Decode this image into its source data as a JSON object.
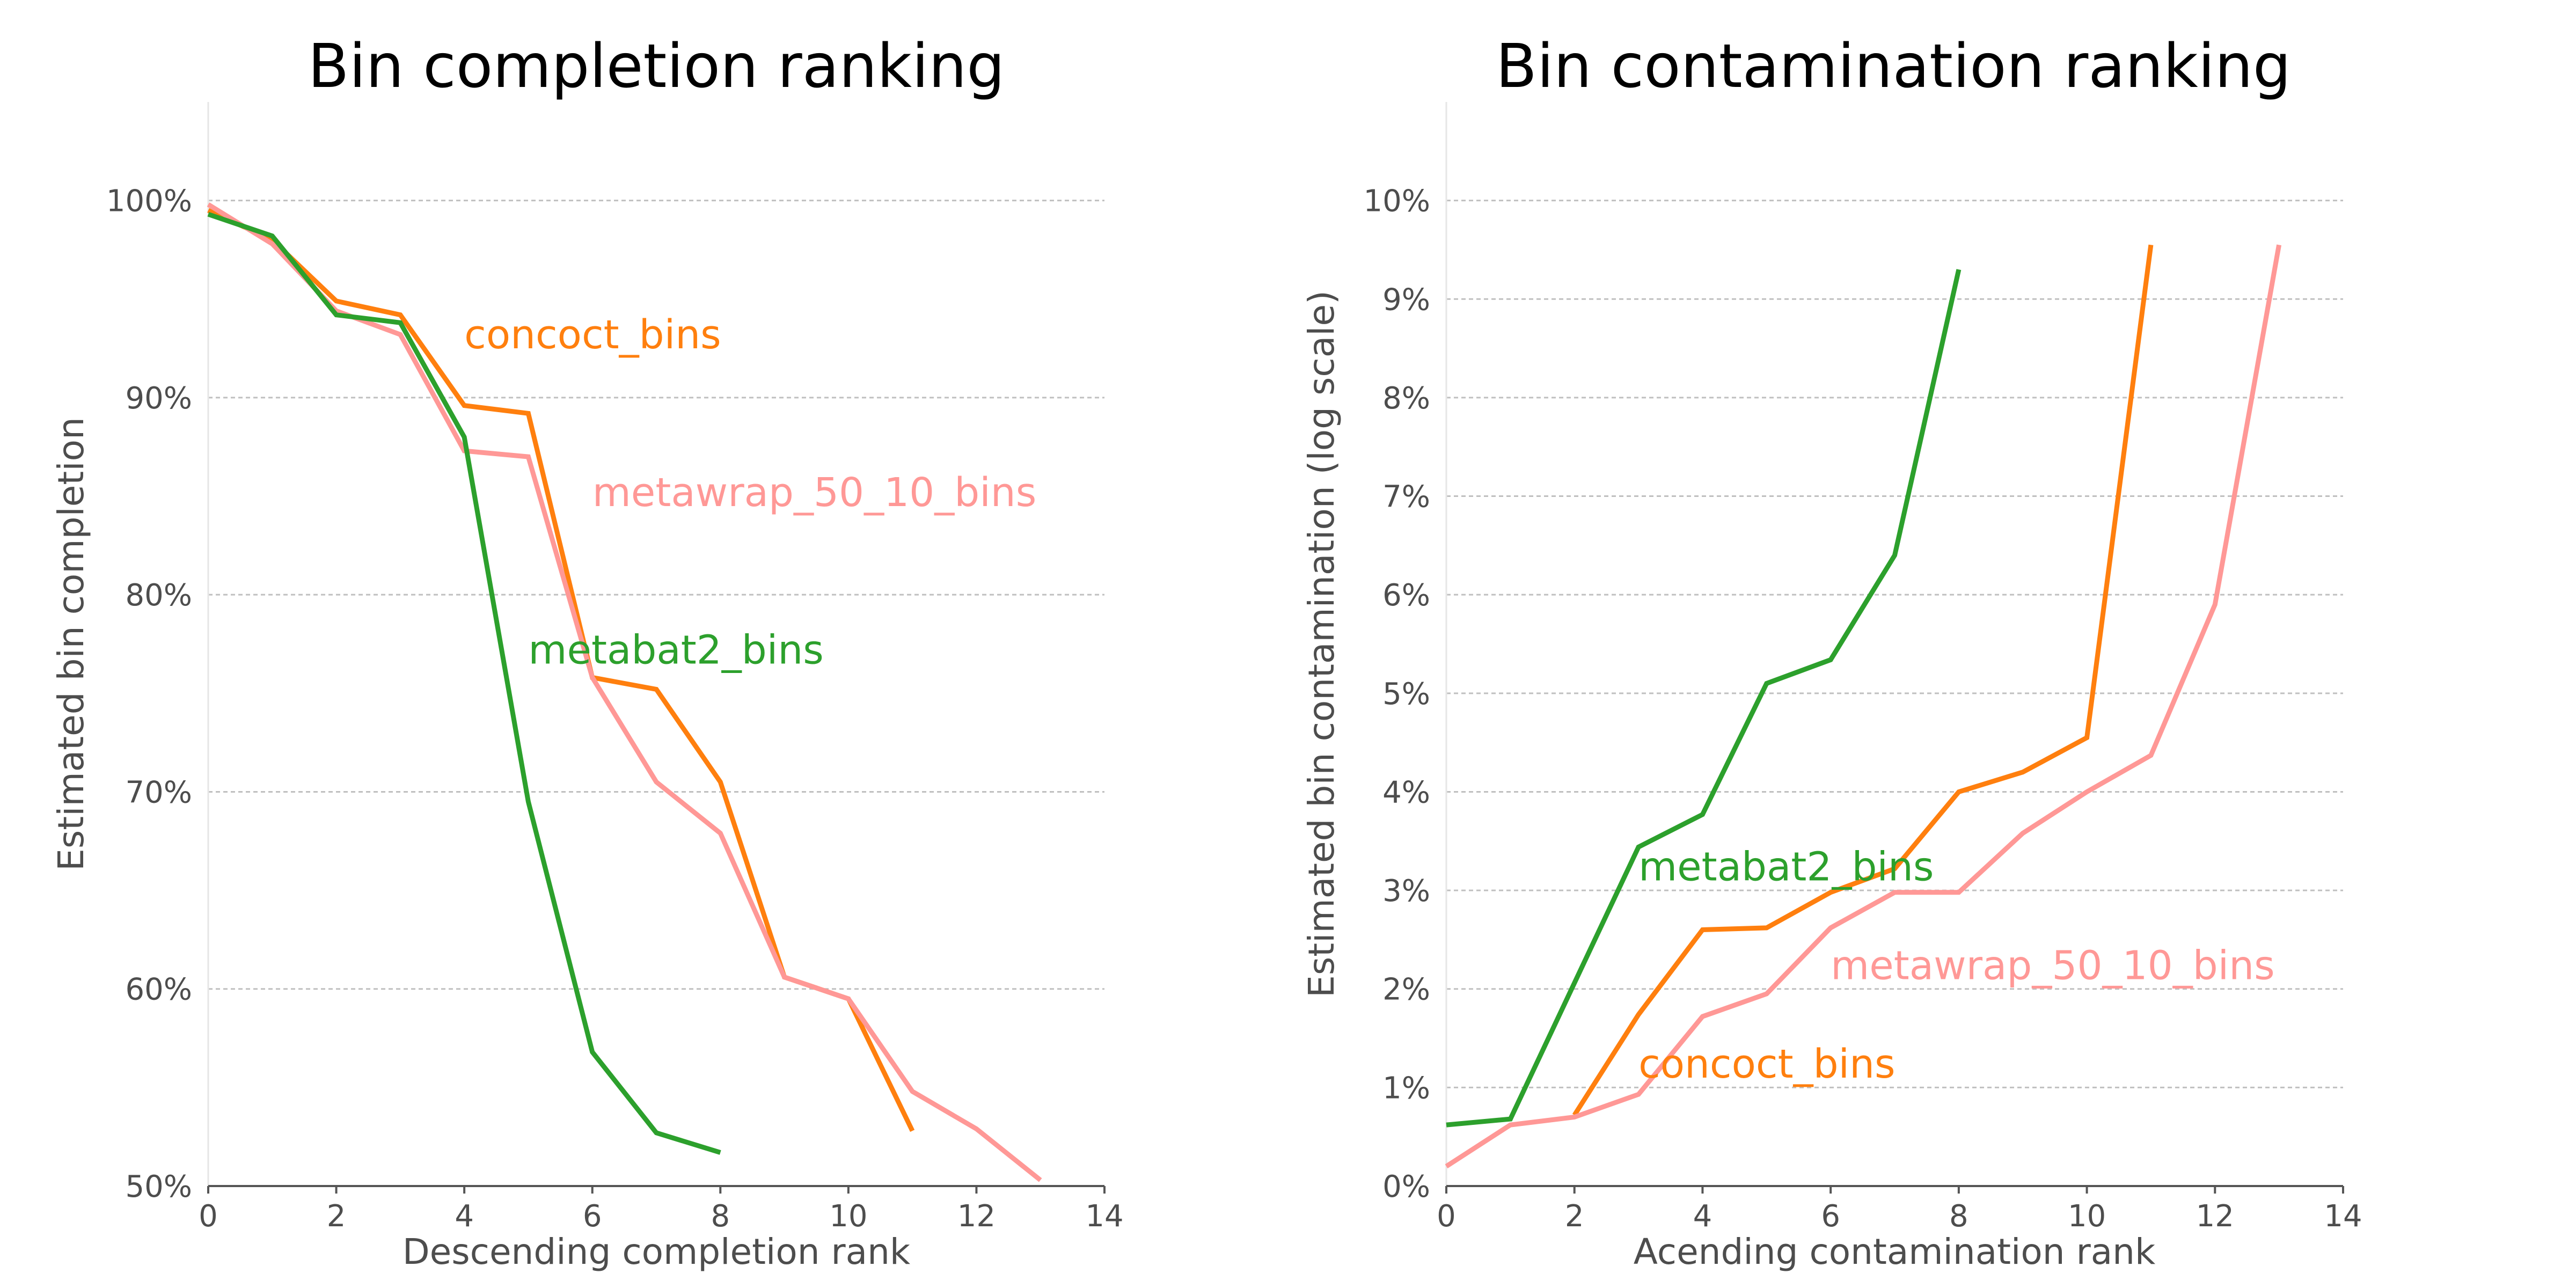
{
  "chart_data": [
    {
      "type": "line",
      "title": "Bin completion ranking",
      "xlabel": "Descending completion rank",
      "ylabel": "Estimated bin completion",
      "xlim": [
        0,
        14
      ],
      "ylim": [
        50,
        105
      ],
      "x_ticks": [
        0,
        2,
        4,
        6,
        8,
        10,
        12,
        14
      ],
      "y_ticks": [
        50,
        60,
        70,
        80,
        90,
        100
      ],
      "y_tick_labels": [
        "50%",
        "60%",
        "70%",
        "80%",
        "90%",
        "100%"
      ],
      "grid": true,
      "series": [
        {
          "name": "concoct_bins",
          "color": "#ff7f0e",
          "x": [
            0,
            1,
            2,
            3,
            4,
            5,
            6,
            7,
            8,
            9,
            10,
            11
          ],
          "y": [
            99.5,
            98.0,
            94.9,
            94.2,
            89.6,
            89.2,
            75.8,
            75.2,
            70.5,
            60.6,
            59.5,
            52.8
          ]
        },
        {
          "name": "metawrap_50_10_bins",
          "color": "#ff9896",
          "x": [
            0,
            1,
            2,
            3,
            4,
            5,
            6,
            7,
            8,
            9,
            10,
            11,
            12,
            13
          ],
          "y": [
            99.8,
            97.8,
            94.4,
            93.2,
            87.3,
            87.0,
            75.8,
            70.5,
            67.9,
            60.6,
            59.5,
            54.8,
            52.9,
            50.3
          ]
        },
        {
          "name": "metabat2_bins",
          "color": "#2ca02c",
          "x": [
            0,
            1,
            2,
            3,
            4,
            5,
            6,
            7,
            8
          ],
          "y": [
            99.3,
            98.2,
            94.2,
            93.8,
            88.0,
            69.5,
            56.8,
            52.7,
            51.7
          ]
        }
      ],
      "annotations": [
        {
          "text": "concoct_bins",
          "x": 4,
          "y": 92.5,
          "color": "#ff7f0e"
        },
        {
          "text": "metawrap_50_10_bins",
          "x": 6,
          "y": 84.5,
          "color": "#ff9896"
        },
        {
          "text": "metabat2_bins",
          "x": 5,
          "y": 76.5,
          "color": "#2ca02c"
        }
      ]
    },
    {
      "type": "line",
      "title": "Bin contamination ranking",
      "xlabel": "Acending contamination rank",
      "ylabel": "Estimated bin contamination (log scale)",
      "xlim": [
        0,
        14
      ],
      "ylim": [
        0,
        11
      ],
      "x_ticks": [
        0,
        2,
        4,
        6,
        8,
        10,
        12,
        14
      ],
      "y_ticks": [
        0,
        1,
        2,
        3,
        4,
        5,
        6,
        7,
        8,
        9,
        10
      ],
      "y_tick_labels": [
        "0%",
        "1%",
        "2%",
        "3%",
        "4%",
        "5%",
        "6%",
        "7%",
        "8%",
        "9%",
        "10%"
      ],
      "grid": true,
      "series": [
        {
          "name": "metabat2_bins",
          "color": "#2ca02c",
          "x": [
            0,
            1,
            2,
            3,
            4,
            5,
            6,
            7,
            8
          ],
          "y": [
            0.62,
            0.68,
            2.06,
            3.44,
            3.77,
            5.1,
            5.34,
            6.4,
            9.3
          ]
        },
        {
          "name": "concoct_bins",
          "color": "#ff7f0e",
          "x": [
            2,
            3,
            4,
            5,
            6,
            7,
            8,
            9,
            10,
            11
          ],
          "y": [
            0.72,
            1.74,
            2.6,
            2.62,
            2.98,
            3.22,
            4.0,
            4.2,
            4.55,
            9.55
          ]
        },
        {
          "name": "metawrap_50_10_bins",
          "color": "#ff9896",
          "x": [
            0,
            1,
            2,
            3,
            4,
            5,
            6,
            7,
            8,
            9,
            10,
            11,
            12,
            13
          ],
          "y": [
            0.2,
            0.62,
            0.7,
            0.93,
            1.72,
            1.95,
            2.62,
            2.98,
            2.98,
            3.58,
            4.0,
            4.37,
            5.9,
            9.55
          ]
        }
      ],
      "annotations": [
        {
          "text": "metabat2_bins",
          "x": 3,
          "y": 3.1,
          "color": "#2ca02c"
        },
        {
          "text": "metawrap_50_10_bins",
          "x": 6,
          "y": 2.1,
          "color": "#ff9896"
        },
        {
          "text": "concoct_bins",
          "x": 3,
          "y": 1.1,
          "color": "#ff7f0e"
        }
      ]
    }
  ]
}
